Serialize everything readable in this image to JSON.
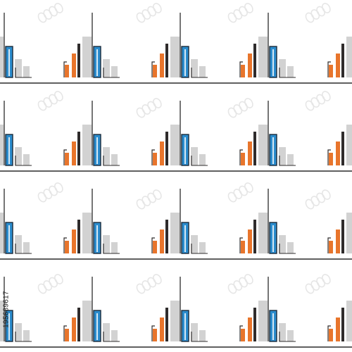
{
  "stock_id": "195689617",
  "watermark_logo": "adobe-stock-watermark",
  "colors": {
    "background": "#ffffff",
    "baseline": "#2b2b2b",
    "blue_bar_fill": "#2b8ccd",
    "blue_bar_outline": "#1b2a3a",
    "gray_bar": "#d2d2d2",
    "orange_bar": "#e8752c",
    "dark_bar": "#2f2c2c",
    "tall_line": "#3a3a3a",
    "watermark": "#e6e6e6"
  },
  "icons": {
    "tile": "bar-chart-icon",
    "watermark": "adobe-stock-watermark"
  }
}
